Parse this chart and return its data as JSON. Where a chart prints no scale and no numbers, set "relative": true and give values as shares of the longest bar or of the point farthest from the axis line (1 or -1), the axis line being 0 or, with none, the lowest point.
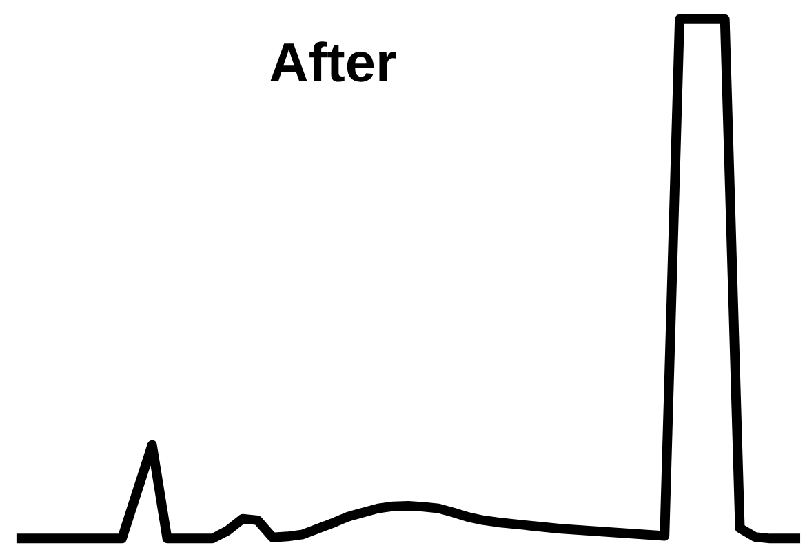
{
  "chart_data": {
    "type": "line",
    "title": "After",
    "relative": true,
    "color": "#000000",
    "categories": [
      null,
      null,
      null,
      null,
      null,
      null,
      null,
      null,
      null,
      null,
      null,
      null,
      null,
      null,
      null,
      null,
      null,
      null,
      null,
      null,
      null,
      null,
      null,
      null,
      null,
      null,
      null,
      null,
      null,
      null,
      null,
      null,
      null,
      null,
      null,
      null,
      null,
      null,
      null,
      null,
      null,
      null,
      null,
      null,
      null,
      null,
      null,
      null,
      null,
      null,
      null,
      null,
      null
    ],
    "values": [
      0,
      0,
      0,
      0,
      0,
      0,
      0,
      0,
      0.09,
      0.18,
      0,
      0,
      0,
      0,
      0.015,
      0.038,
      0.035,
      0.002,
      0.004,
      0.008,
      0.019,
      0.03,
      0.042,
      0.05,
      0.058,
      0.062,
      0.063,
      0.061,
      0.058,
      0.05,
      0.041,
      0.035,
      0.031,
      0.028,
      0.025,
      0.022,
      0.019,
      0.017,
      0.015,
      0.013,
      0.011,
      0.009,
      0.007,
      0.005,
      1,
      1,
      1,
      1,
      0.02,
      0.003,
      0,
      0,
      0
    ]
  }
}
